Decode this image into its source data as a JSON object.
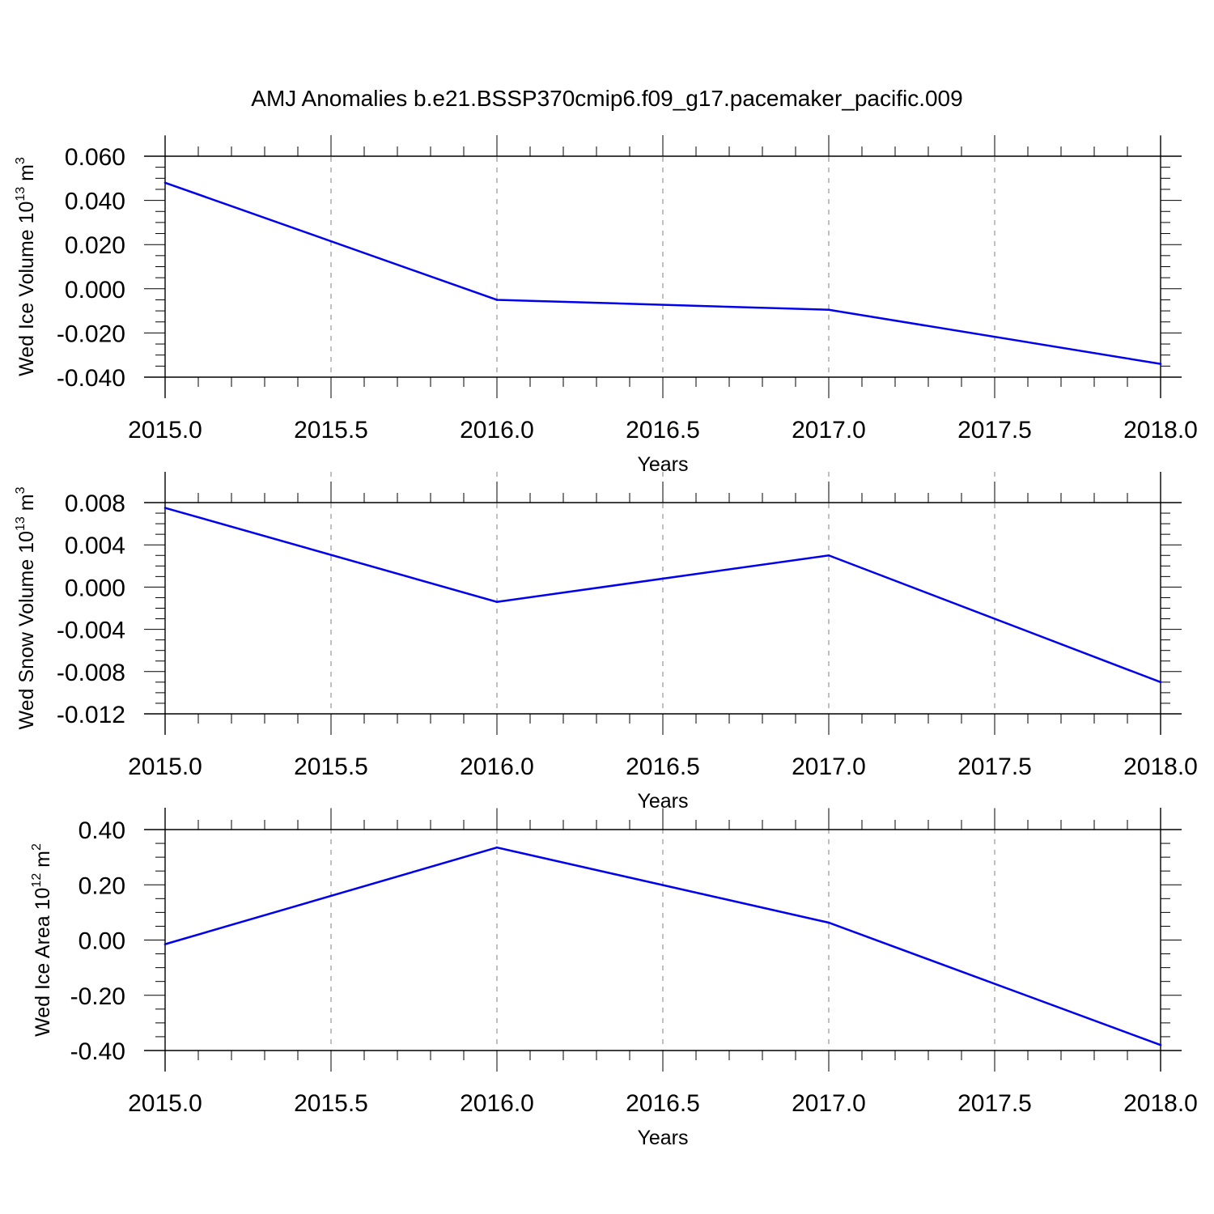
{
  "title": "AMJ Anomalies b.e21.BSSP370cmip6.f09_g17.pacemaker_pacific.009",
  "colors": {
    "series": "#0000ee",
    "axis": "#000000",
    "grid": "#808080"
  },
  "chart_data": [
    {
      "type": "line",
      "ylabel": "Wed Ice Volume",
      "yunit_base": "10",
      "yunit_exp": "13",
      "yunit_unit": "m",
      "yunit_unit_exp": "3",
      "xlabel": "Years",
      "x": [
        2015,
        2016,
        2017,
        2018
      ],
      "y": [
        0.048,
        -0.005,
        -0.0095,
        -0.034
      ],
      "xlim": [
        2015,
        2018
      ],
      "ylim": [
        -0.04,
        0.06
      ],
      "xticks": [
        "2015.0",
        "2015.5",
        "2016.0",
        "2016.5",
        "2017.0",
        "2017.5",
        "2018.0"
      ],
      "yticks": [
        "0.060",
        "0.040",
        "0.020",
        "0.000",
        "-0.020",
        "-0.040"
      ],
      "grid": "vertical dashed"
    },
    {
      "type": "line",
      "ylabel": "Wed Snow Volume",
      "yunit_base": "10",
      "yunit_exp": "13",
      "yunit_unit": "m",
      "yunit_unit_exp": "3",
      "xlabel": "Years",
      "x": [
        2015,
        2016,
        2017,
        2018
      ],
      "y": [
        0.0075,
        -0.0014,
        0.003,
        -0.009
      ],
      "xlim": [
        2015,
        2018
      ],
      "ylim": [
        -0.012,
        0.008
      ],
      "xticks": [
        "2015.0",
        "2015.5",
        "2016.0",
        "2016.5",
        "2017.0",
        "2017.5",
        "2018.0"
      ],
      "yticks": [
        "0.008",
        "0.004",
        "0.000",
        "-0.004",
        "-0.008",
        "-0.012"
      ],
      "grid": "vertical dashed"
    },
    {
      "type": "line",
      "ylabel": "Wed Ice Area",
      "yunit_base": "10",
      "yunit_exp": "12",
      "yunit_unit": "m",
      "yunit_unit_exp": "2",
      "xlabel": "Years",
      "x": [
        2015,
        2016,
        2017,
        2018
      ],
      "y": [
        -0.015,
        0.335,
        0.063,
        -0.38
      ],
      "xlim": [
        2015,
        2018
      ],
      "ylim": [
        -0.4,
        0.4
      ],
      "xticks": [
        "2015.0",
        "2015.5",
        "2016.0",
        "2016.5",
        "2017.0",
        "2017.5",
        "2018.0"
      ],
      "yticks": [
        "0.40",
        "0.20",
        "0.00",
        "-0.20",
        "-0.40"
      ],
      "grid": "vertical dashed"
    }
  ]
}
